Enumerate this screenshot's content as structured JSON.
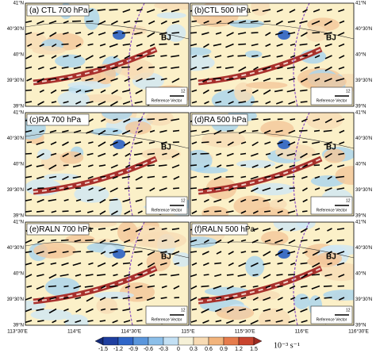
{
  "panels": [
    {
      "label": "(a) CTL 700 hPa"
    },
    {
      "label": "(b)CTL 500 hPa"
    },
    {
      "label": "(c)RA 700 hPa"
    },
    {
      "label": "(d)RA 500 hPa"
    },
    {
      "label": "(e)RALN 700 hPa"
    },
    {
      "label": "(f)RALN 500 hPa"
    }
  ],
  "lat_labels": [
    "41°N",
    "40°30'N",
    "40°N",
    "39°30'N",
    "39°N"
  ],
  "lon_labels": [
    "113°30'E",
    "114°E",
    "114°30'E",
    "115°E",
    "115°30'E",
    "116°E",
    "116°30'E"
  ],
  "city": "BJ",
  "reference_vector": {
    "value": "12",
    "label": "Reference Vector"
  },
  "colorbar": {
    "ticks": [
      "-1.5",
      "-1.2",
      "-0.9",
      "-0.6",
      "-0.3",
      "0",
      "0.3",
      "0.6",
      "0.9",
      "1.2",
      "1.5"
    ],
    "unit": "10⁻³ s⁻¹"
  }
}
